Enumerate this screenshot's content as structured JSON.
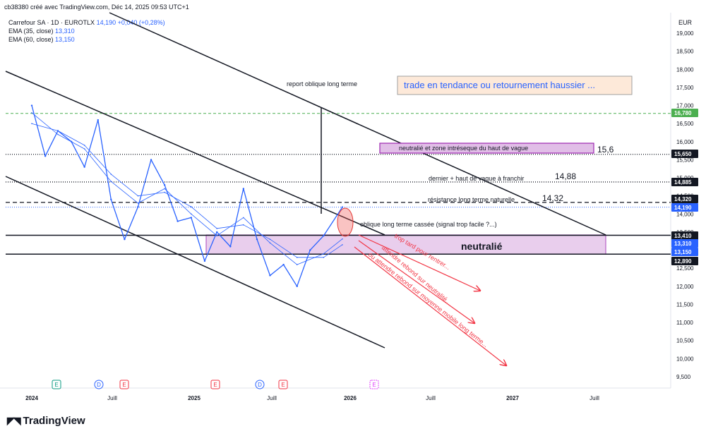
{
  "header": {
    "credit": "cb38380 créé avec TradingView.com, Déc 14, 2025 09:53 UTC+1",
    "symbol": "Carrefour SA · 1D · EUROTLX",
    "last": "14,190",
    "change": "+0,040 (+0,28%)",
    "ema35_label": "EMA (35, close)",
    "ema35_value": "13,310",
    "ema60_label": "EMA (60, close)",
    "ema60_value": "13,150"
  },
  "brand": "TradingView",
  "currency": "EUR",
  "chart_data": {
    "type": "line",
    "price_axis": [
      "19,000",
      "18,500",
      "18,000",
      "17,500",
      "17,000",
      "16,500",
      "16,000",
      "15,500",
      "15,000",
      "14,500",
      "14,000",
      "13,500",
      "13,000",
      "12,500",
      "12,000",
      "11,500",
      "11,000",
      "10,500",
      "10,000",
      "9,500"
    ],
    "time_axis": [
      "2024",
      "Juill",
      "2025",
      "Juill",
      "2026",
      "Juill",
      "2027",
      "Juill"
    ],
    "price_tags": [
      {
        "label": "16,780",
        "bg": "#4caf50",
        "fg": "#ffffff"
      },
      {
        "label": "15,650",
        "bg": "#131722",
        "fg": "#ffffff"
      },
      {
        "label": "14,885",
        "bg": "#131722",
        "fg": "#ffffff"
      },
      {
        "label": "14,320",
        "bg": "#131722",
        "fg": "#ffffff"
      },
      {
        "label": "14,190",
        "bg": "#2962ff",
        "fg": "#ffffff"
      },
      {
        "label": "13,410",
        "bg": "#131722",
        "fg": "#ffffff"
      },
      {
        "label": "13,310",
        "bg": "#2962ff",
        "fg": "#ffffff"
      },
      {
        "label": "13,150",
        "bg": "#2962ff",
        "fg": "#ffffff"
      },
      {
        "label": "12,890",
        "bg": "#131722",
        "fg": "#ffffff"
      }
    ],
    "series": [
      {
        "name": "Carrefour SA",
        "color": "#2962ff",
        "x": [
          "2024-01-01",
          "2024-02-01",
          "2024-03-01",
          "2024-04-01",
          "2024-05-01",
          "2024-06-01",
          "2024-07-01",
          "2024-08-01",
          "2024-09-01",
          "2024-10-01",
          "2024-11-01",
          "2024-12-01",
          "2025-01-01",
          "2025-02-01",
          "2025-03-01",
          "2025-04-01",
          "2025-05-01",
          "2025-06-01",
          "2025-07-01",
          "2025-08-01",
          "2025-09-01",
          "2025-10-01",
          "2025-11-01",
          "2025-12-14"
        ],
        "values": [
          17.0,
          15.6,
          16.3,
          16.0,
          15.3,
          16.6,
          14.4,
          13.3,
          14.2,
          15.5,
          14.8,
          13.8,
          13.9,
          12.7,
          13.5,
          13.1,
          14.7,
          13.3,
          12.3,
          12.6,
          12.0,
          13.0,
          13.4,
          14.19
        ]
      },
      {
        "name": "EMA (35, close)",
        "color": "#2962ff",
        "x": [
          "2024-01-01",
          "2024-03-01",
          "2024-05-01",
          "2024-07-01",
          "2024-09-01",
          "2024-11-01",
          "2025-01-01",
          "2025-03-01",
          "2025-05-01",
          "2025-07-01",
          "2025-09-01",
          "2025-11-01",
          "2025-12-14"
        ],
        "values": [
          16.8,
          16.2,
          15.8,
          14.9,
          14.3,
          14.7,
          14.0,
          13.4,
          13.9,
          13.2,
          12.6,
          12.9,
          13.31
        ]
      },
      {
        "name": "EMA (60, close)",
        "color": "#2962ff",
        "x": [
          "2024-01-01",
          "2024-03-01",
          "2024-05-01",
          "2024-07-01",
          "2024-09-01",
          "2024-11-01",
          "2025-01-01",
          "2025-03-01",
          "2025-05-01",
          "2025-07-01",
          "2025-09-01",
          "2025-11-01",
          "2025-12-14"
        ],
        "values": [
          16.5,
          16.3,
          15.9,
          15.1,
          14.5,
          14.6,
          14.2,
          13.6,
          13.7,
          13.3,
          12.8,
          12.8,
          13.15
        ]
      }
    ],
    "hlines": [
      {
        "price": "16,780",
        "style": "dashed-green"
      },
      {
        "price": "15,650",
        "style": "dotted"
      },
      {
        "price": "14,885",
        "style": "dotted"
      },
      {
        "price": "14,320",
        "style": "dashed"
      },
      {
        "price": "14,190",
        "style": "dotted-blue"
      },
      {
        "price": "13,410",
        "style": "solid"
      },
      {
        "price": "12,890",
        "style": "solid"
      }
    ],
    "annotations": {
      "report": "report oblique long terme",
      "trade": "trade en tendance ou retournement haussier ...",
      "neutral_zone": "neutralié et zone intréseque du haut de vague",
      "neutral_zone_value": "15,6",
      "last_high": "dernier + haut de vague à franchir",
      "last_high_value": "14,88",
      "resistance": "résistance long terme naturelle",
      "resistance_value": "14,32",
      "broken": "oblique long terme cassée (signal trop facile ?...)",
      "neutral": "neutralié",
      "arrow1": "trop tard pour rentrer...",
      "arrow2": "attendre rebond sur neutralité...",
      "arrow3": "ou attendre rebond sur moyenne mobile long terme..."
    },
    "events": [
      {
        "label": "E",
        "color": "#089981"
      },
      {
        "label": "D",
        "color": "#2962ff"
      },
      {
        "label": "E",
        "color": "#f23645"
      },
      {
        "label": "E",
        "color": "#f23645"
      },
      {
        "label": "D",
        "color": "#2962ff"
      },
      {
        "label": "E",
        "color": "#f23645"
      },
      {
        "label": "E",
        "color": "#e040fb"
      }
    ]
  }
}
